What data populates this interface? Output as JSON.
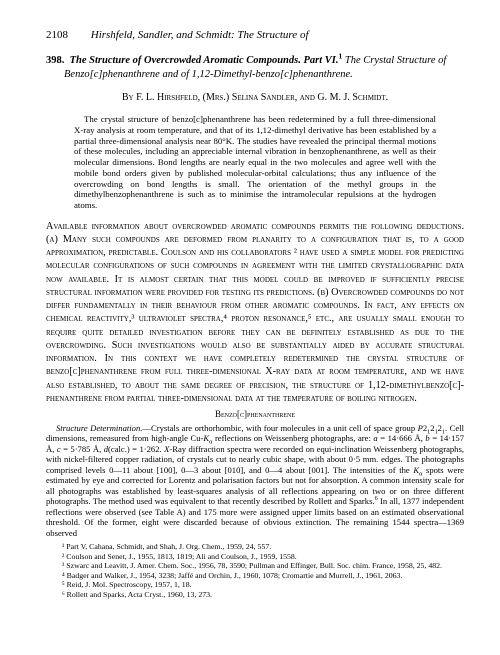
{
  "page_number": "2108",
  "running_head": "Hirshfeld, Sandler, and Schmidt: The Structure of",
  "article": {
    "number": "398.",
    "title_line1": "The Structure of Overcrowded Aromatic Compounds.   Part VI.",
    "title_line2": "The Crystal Structure of Benzo[c]phenanthrene and of 1,12-Dimethyl-benzo[c]phenanthrene.",
    "sup1": "1",
    "authors": "By F. L. Hirshfeld, (Mrs.) Selina Sandler, and G. M. J. Schmidt."
  },
  "abstract": "The crystal structure of benzo[c]phenanthrene has been redetermined by a full three-dimensional X-ray analysis at room temperature, and that of its 1,12-dimethyl derivative has been established by a partial three-dimensional analysis near 80°K. The studies have revealed the principal thermal motions of these molecules, including an appreciable internal vibration in benzophenanthrene, as well as their molecular dimensions. Bond lengths are nearly equal in the two molecules and agree well with the mobile bond orders given by published molecular-orbital calculations; thus any influence of the overcrowding on bond lengths is small. The orientation of the methyl groups in the dimethylbenzophenanthrene is such as to minimise the intramolecular repulsions at the hydrogen atoms.",
  "body_p1": "Available information about overcrowded aromatic compounds permits the following deductions. (a) Many such compounds are deformed from planarity to a configuration that is, to a good approximation, predictable. Coulson and his collaborators ² have used a simple model for predicting molecular configurations of such compounds in agreement with the limited crystallographic data now available. It is almost certain that this model could be improved if sufficiently precise structural information were provided for testing its predictions. (b) Overcrowded compounds do not differ fundamentally in their behaviour from other aromatic compounds. In fact, any effects on chemical reactivity,³ ultraviolet spectra,⁴ proton resonance,⁵ etc., are usually small enough to require quite detailed investigation before they can be definitely established as due to the overcrowding. Such investigations would also be substantially aided by accurate structural information. In this context we have completely redetermined the crystal structure of benzo[c]phenanthrene from full three-dimensional X-ray data at room temperature, and we have also established, to about the same degree of precision, the structure of 1,12-dimethylbenzo[c]-phenanthrene from partial three-dimensional data at the temperature of boiling nitrogen.",
  "section_heading": "Benzo[c]phenanthrene",
  "struct_para": "Structure Determination.—Crystals are orthorhombic, with four molecules in a unit cell of space group P2₁2₁2₁. Cell dimensions, remeasured from high-angle Cu-Kα reflections on Weissenberg photographs, are: a = 14·666 Å, b = 14·157 Å, c = 5·785 Å, d(calc.) = 1·262. X-Ray diffraction spectra were recorded on equi-inclination Weissenberg photographs, with nickel-filtered copper radiation, of crystals cut to nearly cubic shape, with about 0·5 mm. edges. The photographs comprised levels 0—11 about [100], 0—3 about [010], and 0—4 about [001]. The intensities of the Kα spots were estimated by eye and corrected for Lorentz and polarisation factors but not for absorption. A common intensity scale for all photographs was established by least-squares analysis of all reflections appearing on two or on three different photographs. The method used was equivalent to that recently described by Rollett and Sparks.⁶ In all, 1377 independent reflections were observed (see Table A) and 175 more were assigned upper limits based on an estimated observational threshold. Of the former, eight were discarded because of obvious extinction. The remaining 1544 spectra—1369 observed",
  "refs": [
    "¹ Part V, Cahana, Schmidt, and Shah, J. Org. Chem., 1959, 24, 557.",
    "² Coulson and Senet, J., 1955, 1813, 1819; Ali and Coulson, J., 1959, 1558.",
    "³ Szwarc and Leavitt, J. Amer. Chem. Soc., 1956, 78, 3590; Pullman and Effinger, Bull. Soc. chim. France, 1958, 25, 482.",
    "⁴ Badger and Walker, J., 1954, 3238; Jaffé and Orchin, J., 1960, 1078; Cromartie and Murrell, J., 1961, 2063.",
    "⁵ Reid, J. Mol. Spectroscopy, 1957, 1, 18.",
    "⁶ Rollett and Sparks, Acta Cryst., 1960, 13, 273."
  ]
}
